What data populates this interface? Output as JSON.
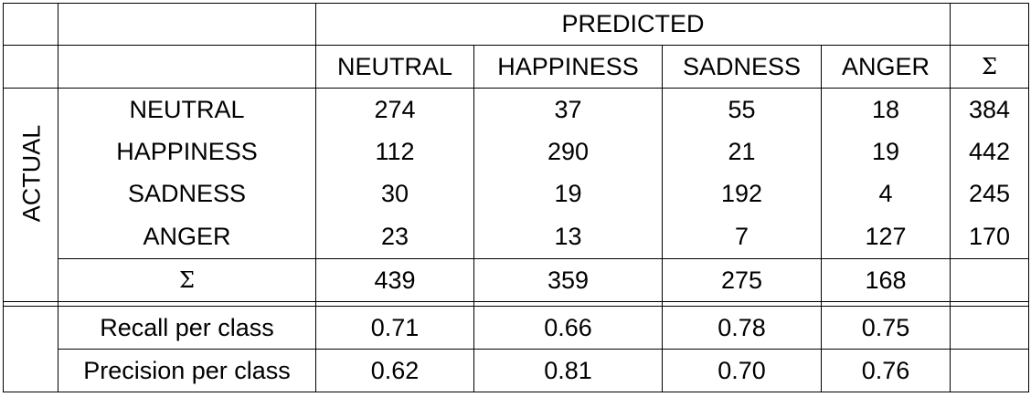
{
  "header": {
    "predicted_label": "PREDICTED",
    "actual_label": "ACTUAL",
    "sum_symbol": "Σ",
    "columns": [
      "NEUTRAL",
      "HAPPINESS",
      "SADNESS",
      "ANGER"
    ]
  },
  "matrix": {
    "rows": [
      {
        "label": "NEUTRAL",
        "values": [
          "274",
          "37",
          "55",
          "18"
        ],
        "sum": "384"
      },
      {
        "label": "HAPPINESS",
        "values": [
          "112",
          "290",
          "21",
          "19"
        ],
        "sum": "442"
      },
      {
        "label": "SADNESS",
        "values": [
          "30",
          "19",
          "192",
          "4"
        ],
        "sum": "245"
      },
      {
        "label": "ANGER",
        "values": [
          "23",
          "13",
          "7",
          "127"
        ],
        "sum": "170"
      }
    ],
    "column_sums": [
      "439",
      "359",
      "275",
      "168"
    ]
  },
  "metrics": [
    {
      "label": "Recall per class",
      "values": [
        "0.71",
        "0.66",
        "0.78",
        "0.75"
      ]
    },
    {
      "label": "Precision per class",
      "values": [
        "0.62",
        "0.81",
        "0.70",
        "0.76"
      ]
    }
  ]
}
